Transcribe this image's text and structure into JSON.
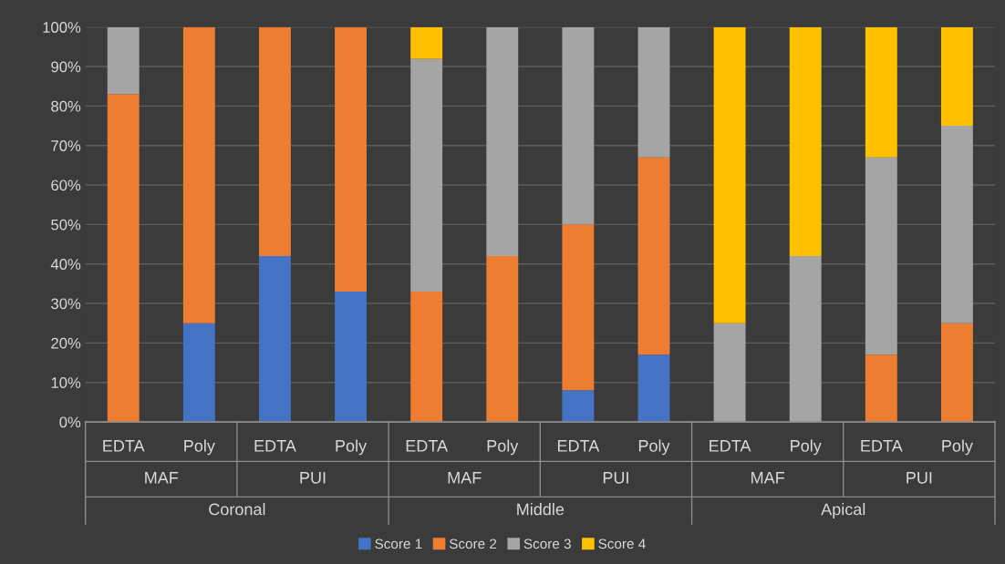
{
  "chart_data": {
    "type": "bar",
    "stacked": true,
    "categories": [
      "EDTA",
      "Poly",
      "EDTA",
      "Poly",
      "EDTA",
      "Poly",
      "EDTA",
      "Poly",
      "EDTA",
      "Poly",
      "EDTA",
      "Poly"
    ],
    "series": [
      {
        "name": "Score 1",
        "color": "#4472c4",
        "values": [
          0,
          25,
          42,
          33,
          0,
          0,
          8,
          17,
          0,
          0,
          0,
          0
        ]
      },
      {
        "name": "Score 2",
        "color": "#ed7d31",
        "values": [
          83,
          75,
          58,
          67,
          33,
          42,
          42,
          50,
          0,
          0,
          17,
          25
        ]
      },
      {
        "name": "Score 3",
        "color": "#a5a5a5",
        "values": [
          17,
          0,
          0,
          0,
          59,
          58,
          50,
          33,
          25,
          42,
          50,
          50
        ]
      },
      {
        "name": "Score 4",
        "color": "#ffc000",
        "values": [
          0,
          0,
          0,
          0,
          8,
          0,
          0,
          0,
          75,
          58,
          33,
          25
        ]
      }
    ],
    "annotations": [
      "MAF",
      "PUI",
      "MAF",
      "PUI",
      "MAF",
      "PUI",
      "Coronal",
      "Middle",
      "Apical"
    ],
    "ylim": [
      0,
      100
    ],
    "yticks": [
      {
        "value": 0,
        "label": "0%"
      },
      {
        "value": 10,
        "label": "10%"
      },
      {
        "value": 20,
        "label": "20%"
      },
      {
        "value": 30,
        "label": "30%"
      },
      {
        "value": 40,
        "label": "40%"
      },
      {
        "value": 50,
        "label": "50%"
      },
      {
        "value": 60,
        "label": "60%"
      },
      {
        "value": 70,
        "label": "70%"
      },
      {
        "value": 80,
        "label": "80%"
      },
      {
        "value": 90,
        "label": "90%"
      },
      {
        "value": 100,
        "label": "100%"
      }
    ],
    "grid": "y",
    "legend": "bottom"
  }
}
